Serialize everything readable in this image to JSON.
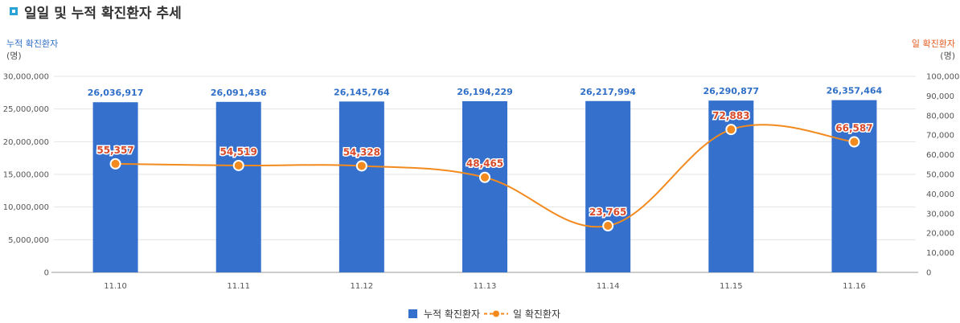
{
  "header": {
    "title": "일일 및 누적 확진환자 추세"
  },
  "chart_data": {
    "type": "bar",
    "categories": [
      "11.10",
      "11.11",
      "11.12",
      "11.13",
      "11.14",
      "11.15",
      "11.16"
    ],
    "y_left": {
      "label": "누적 확진환자",
      "unit": "(명)",
      "ylim": [
        0,
        30000000
      ],
      "ticks": [
        "30,000,000",
        "25,000,000",
        "20,000,000",
        "15,000,000",
        "10,000,000",
        "5,000,000",
        "0"
      ],
      "tick_values": [
        30000000,
        25000000,
        20000000,
        15000000,
        10000000,
        5000000,
        0
      ]
    },
    "y_right": {
      "label": "일 확진환자",
      "unit": "(명)",
      "ylim": [
        0,
        100000
      ],
      "ticks": [
        "100,000",
        "90,000",
        "80,000",
        "70,000",
        "60,000",
        "50,000",
        "40,000",
        "30,000",
        "20,000",
        "10,000",
        "0"
      ],
      "tick_values": [
        100000,
        90000,
        80000,
        70000,
        60000,
        50000,
        40000,
        30000,
        20000,
        10000,
        0
      ]
    },
    "series": [
      {
        "name": "누적 확진환자",
        "type": "bar",
        "axis": "left",
        "color": "#3571cc",
        "values": [
          26036917,
          26091436,
          26145764,
          26194229,
          26217994,
          26290877,
          26357464
        ],
        "labels": [
          "26,036,917",
          "26,091,436",
          "26,145,764",
          "26,194,229",
          "26,217,994",
          "26,290,877",
          "26,357,464"
        ]
      },
      {
        "name": "일 확진환자",
        "type": "line",
        "axis": "right",
        "color": "#f28a1e",
        "values": [
          55357,
          54519,
          54328,
          48465,
          23765,
          72883,
          66587
        ],
        "labels": [
          "55,357",
          "54,519",
          "54,328",
          "48,465",
          "23,765",
          "72,883",
          "66,587"
        ]
      }
    ],
    "grid": true,
    "legend": "bottom"
  }
}
